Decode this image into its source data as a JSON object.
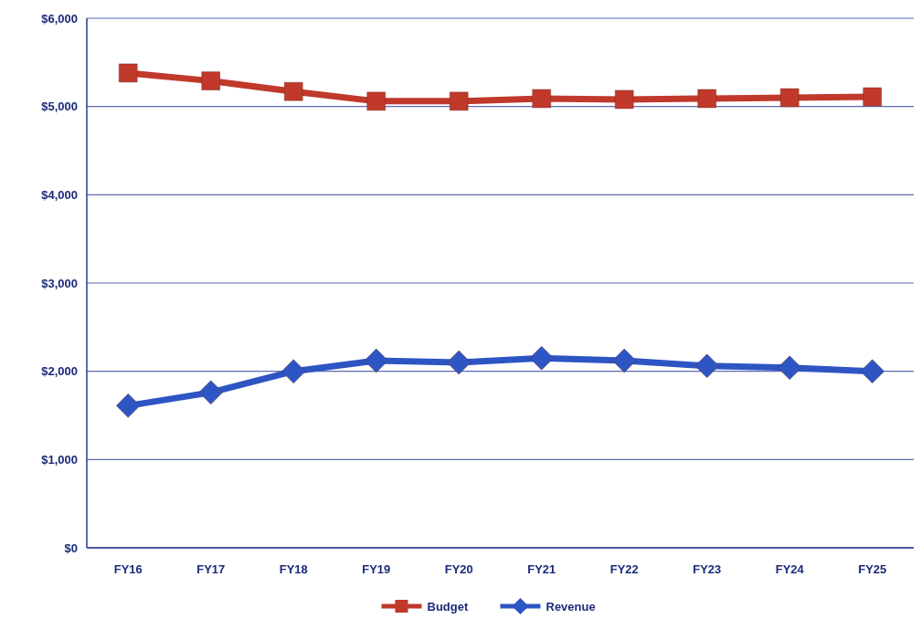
{
  "chart_data": {
    "type": "line",
    "categories": [
      "FY16",
      "FY17",
      "FY18",
      "FY19",
      "FY20",
      "FY21",
      "FY22",
      "FY23",
      "FY24",
      "FY25"
    ],
    "series": [
      {
        "name": "Budget",
        "color": "#c0392b",
        "marker": "square",
        "values": [
          5380,
          5290,
          5170,
          5060,
          5060,
          5090,
          5080,
          5090,
          5100,
          5110
        ]
      },
      {
        "name": "Revenue",
        "color": "#2e55c4",
        "marker": "diamond",
        "values": [
          1610,
          1760,
          2000,
          2120,
          2100,
          2150,
          2120,
          2060,
          2040,
          2000
        ]
      }
    ],
    "ylim": [
      0,
      6000
    ],
    "yticks": [
      {
        "value": 0,
        "label": "$0"
      },
      {
        "value": 1000,
        "label": "$1,000"
      },
      {
        "value": 2000,
        "label": "$2,000"
      },
      {
        "value": 3000,
        "label": "$3,000"
      },
      {
        "value": 4000,
        "label": "$4,000"
      },
      {
        "value": 5000,
        "label": "$5,000"
      },
      {
        "value": 6000,
        "label": "$6,000"
      }
    ],
    "grid": "y",
    "legend": "bottom"
  }
}
